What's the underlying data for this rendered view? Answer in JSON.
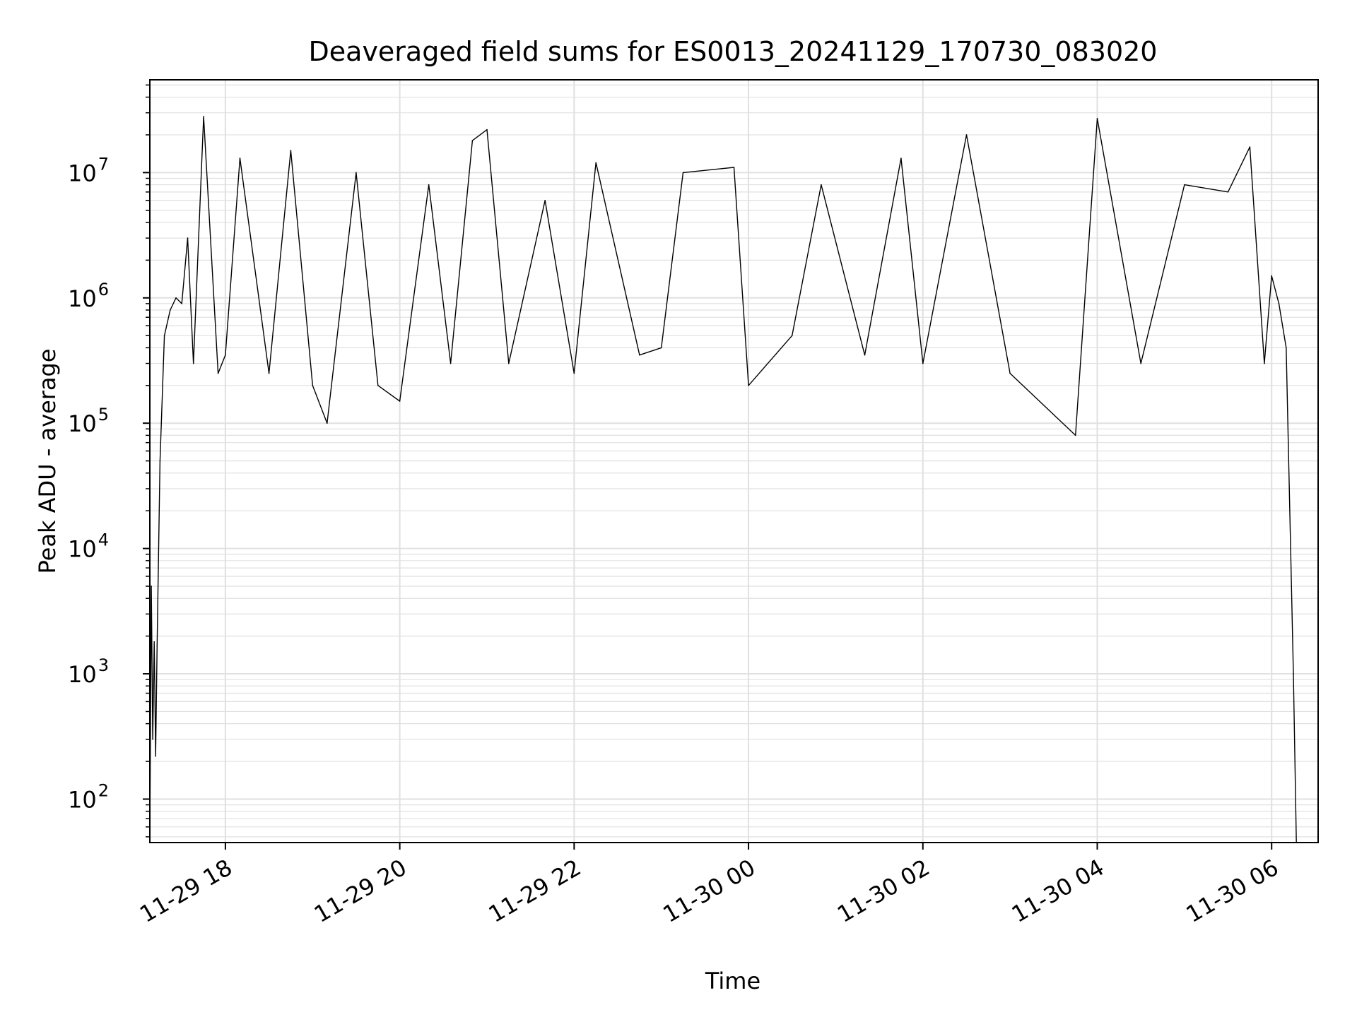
{
  "chart_data": {
    "type": "line",
    "title": "Deaveraged field sums for ES0013_20241129_170730_083020",
    "xlabel": "Time",
    "ylabel": "Peak ADU - average",
    "yscale": "log",
    "ylim": [
      45,
      55000000
    ],
    "xlim": [
      "2024-11-29 17:08",
      "2024-11-30 06:32"
    ],
    "grid": true,
    "line_color": "#000000",
    "grid_color": "#e0e0e0",
    "x_ticks": [
      {
        "value": "2024-11-29 18:00",
        "label": "11-29 18"
      },
      {
        "value": "2024-11-29 20:00",
        "label": "11-29 20"
      },
      {
        "value": "2024-11-29 22:00",
        "label": "11-29 22"
      },
      {
        "value": "2024-11-30 00:00",
        "label": "11-30 00"
      },
      {
        "value": "2024-11-30 02:00",
        "label": "11-30 02"
      },
      {
        "value": "2024-11-30 04:00",
        "label": "11-30 04"
      },
      {
        "value": "2024-11-30 06:00",
        "label": "11-30 06"
      }
    ],
    "y_ticks": [
      {
        "value": 100,
        "base": "10",
        "exp": "2"
      },
      {
        "value": 1000,
        "base": "10",
        "exp": "3"
      },
      {
        "value": 10000,
        "base": "10",
        "exp": "4"
      },
      {
        "value": 100000,
        "base": "10",
        "exp": "5"
      },
      {
        "value": 1000000,
        "base": "10",
        "exp": "6"
      },
      {
        "value": 10000000,
        "base": "10",
        "exp": "7"
      }
    ],
    "series": [
      {
        "points": [
          [
            "2024-11-29 17:08",
            50
          ],
          [
            "2024-11-29 17:09",
            5000
          ],
          [
            "2024-11-29 17:10",
            300
          ],
          [
            "2024-11-29 17:11",
            1800
          ],
          [
            "2024-11-29 17:12",
            220
          ],
          [
            "2024-11-29 17:13",
            1700
          ],
          [
            "2024-11-29 17:15",
            50000
          ],
          [
            "2024-11-29 17:18",
            500000
          ],
          [
            "2024-11-29 17:22",
            800000
          ],
          [
            "2024-11-29 17:26",
            1000000
          ],
          [
            "2024-11-29 17:30",
            900000
          ],
          [
            "2024-11-29 17:34",
            3000000
          ],
          [
            "2024-11-29 17:38",
            300000
          ],
          [
            "2024-11-29 17:45",
            28000000
          ],
          [
            "2024-11-29 17:55",
            250000
          ],
          [
            "2024-11-29 18:00",
            350000
          ],
          [
            "2024-11-29 18:10",
            13000000
          ],
          [
            "2024-11-29 18:30",
            250000
          ],
          [
            "2024-11-29 18:45",
            15000000
          ],
          [
            "2024-11-29 19:00",
            200000
          ],
          [
            "2024-11-29 19:10",
            100000
          ],
          [
            "2024-11-29 19:30",
            10000000
          ],
          [
            "2024-11-29 19:45",
            200000
          ],
          [
            "2024-11-29 20:00",
            150000
          ],
          [
            "2024-11-29 20:20",
            8000000
          ],
          [
            "2024-11-29 20:35",
            300000
          ],
          [
            "2024-11-29 20:50",
            18000000
          ],
          [
            "2024-11-29 21:00",
            22000000
          ],
          [
            "2024-11-29 21:15",
            300000
          ],
          [
            "2024-11-29 21:40",
            6000000
          ],
          [
            "2024-11-29 22:00",
            250000
          ],
          [
            "2024-11-29 22:15",
            12000000
          ],
          [
            "2024-11-29 22:45",
            350000
          ],
          [
            "2024-11-29 23:00",
            400000
          ],
          [
            "2024-11-29 23:15",
            10000000
          ],
          [
            "2024-11-29 23:50",
            11000000
          ],
          [
            "2024-11-30 00:00",
            200000
          ],
          [
            "2024-11-30 00:30",
            500000
          ],
          [
            "2024-11-30 00:50",
            8000000
          ],
          [
            "2024-11-30 01:20",
            350000
          ],
          [
            "2024-11-30 01:45",
            13000000
          ],
          [
            "2024-11-30 02:00",
            300000
          ],
          [
            "2024-11-30 02:30",
            20000000
          ],
          [
            "2024-11-30 03:00",
            250000
          ],
          [
            "2024-11-30 03:45",
            80000
          ],
          [
            "2024-11-30 04:00",
            27000000
          ],
          [
            "2024-11-30 04:30",
            300000
          ],
          [
            "2024-11-30 05:00",
            8000000
          ],
          [
            "2024-11-30 05:30",
            7000000
          ],
          [
            "2024-11-30 05:45",
            16000000
          ],
          [
            "2024-11-30 05:55",
            300000
          ],
          [
            "2024-11-30 06:00",
            1500000
          ],
          [
            "2024-11-30 06:05",
            900000
          ],
          [
            "2024-11-30 06:10",
            400000
          ],
          [
            "2024-11-30 06:15",
            1000
          ],
          [
            "2024-11-30 06:17",
            45
          ]
        ]
      }
    ]
  }
}
